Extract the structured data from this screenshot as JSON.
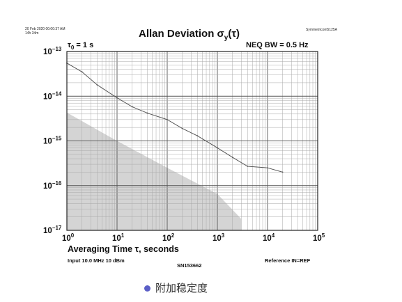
{
  "header": {
    "timestamp_line1": "20 Feb 2020 00:00:37 AM",
    "timestamp_line2": "14h 34m",
    "instrument": "Symmetricom5125A"
  },
  "chart_data": {
    "type": "line",
    "title_prefix": "Allan Deviation ",
    "title_symbol": "σ",
    "title_subscript": "y",
    "title_suffix": "(τ)",
    "tau0_label": "τ",
    "tau0_sub": "0",
    "tau0_value": " = 1 s",
    "bandwidth_label": "NEQ BW = 0.5 Hz",
    "xlabel": "Averaging Time τ, seconds",
    "x_scale": "log",
    "y_scale": "log",
    "xlim": [
      1,
      100000
    ],
    "ylim": [
      1e-17,
      1e-13
    ],
    "x_ticks": [
      {
        "base": "10",
        "exp": "0",
        "value": 1
      },
      {
        "base": "10",
        "exp": "1",
        "value": 10
      },
      {
        "base": "10",
        "exp": "2",
        "value": 100
      },
      {
        "base": "10",
        "exp": "3",
        "value": 1000
      },
      {
        "base": "10",
        "exp": "4",
        "value": 10000
      },
      {
        "base": "10",
        "exp": "5",
        "value": 100000
      }
    ],
    "y_ticks": [
      {
        "base": "10",
        "exp": "−13",
        "value": 1e-13
      },
      {
        "base": "10",
        "exp": "−14",
        "value": 1e-14
      },
      {
        "base": "10",
        "exp": "−15",
        "value": 1e-15
      },
      {
        "base": "10",
        "exp": "−16",
        "value": 1e-16
      },
      {
        "base": "10",
        "exp": "−17",
        "value": 1e-17
      }
    ],
    "grid": true,
    "series": [
      {
        "x": [
          1,
          2,
          4,
          10,
          20,
          40,
          100,
          200,
          400,
          1000,
          2000,
          4000,
          10000,
          20000
        ],
        "y": [
          5.5e-14,
          3.5e-14,
          1.8e-14,
          9.2e-15,
          5.8e-15,
          4.2e-15,
          3e-15,
          1.9e-15,
          1.3e-15,
          7e-16,
          4.3e-16,
          2.7e-16,
          2.5e-16,
          2e-16
        ]
      }
    ],
    "noise_floor": {
      "x": [
        1,
        10,
        100,
        1000,
        3000
      ],
      "y": [
        4.3e-15,
        1e-15,
        2.5e-16,
        6.5e-17,
        1.8e-17
      ]
    },
    "footer_left": "Input 10.0 MHz 10 dBm",
    "footer_center": "SN153662",
    "footer_right": "Reference IN=REF",
    "colors": {
      "line": "#555555",
      "floor": "#d4d4d4",
      "grid_major": "#555555",
      "grid_minor": "#a9a9a9",
      "bullet": "#5b5fc7"
    }
  },
  "caption": {
    "text": "附加稳定度"
  }
}
